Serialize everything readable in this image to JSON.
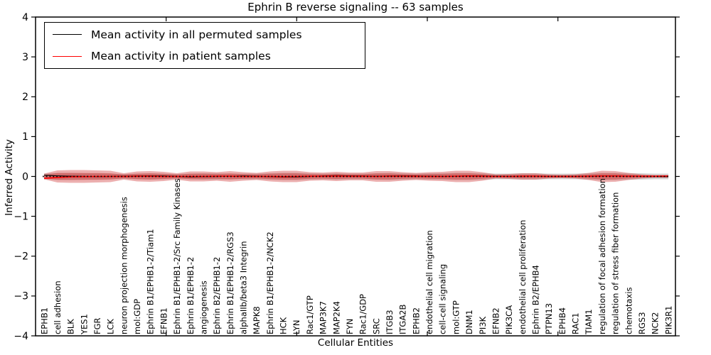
{
  "title": "Ephrin B reverse signaling -- 63 samples",
  "legend": {
    "items": [
      {
        "label": "Mean activity in all permuted samples",
        "color": "#000000"
      },
      {
        "label": "Mean activity in patient samples",
        "color": "#ff0000"
      }
    ]
  },
  "axes": {
    "xlabel": "Cellular Entities",
    "ylabel": "Inferred Activity",
    "ytick_labels": [
      "4",
      "3",
      "2",
      "1",
      "0",
      "−1",
      "−2",
      "−3",
      "−4"
    ]
  },
  "colors": {
    "patient_band": "rgba(205,45,45,0.38)",
    "permuted_band": "rgba(120,120,120,0.30)",
    "patient_line": "#ff0000",
    "permuted_line": "#000000",
    "zero_line": "#000000"
  },
  "chart_data": {
    "type": "area",
    "title": "Ephrin B reverse signaling -- 63 samples",
    "xlabel": "Cellular Entities",
    "ylabel": "Inferred Activity",
    "ylim": [
      -4,
      4
    ],
    "yticks": [
      4,
      3,
      2,
      1,
      0,
      -1,
      -2,
      -3,
      -4
    ],
    "xticks": [
      10,
      20,
      30,
      40
    ],
    "xlim": [
      0,
      49
    ],
    "grid": false,
    "legend_position": "upper left",
    "categories": [
      "EPHB1",
      "cell adhesion",
      "BLK",
      "YES1",
      "FGR",
      "LCK",
      "neuron projection morphogenesis",
      "mol:GDP",
      "Ephrin B1/EPHB1-2/Tiam1",
      "EFNB1",
      "Ephrin B1/EPHB1-2/Src Family Kinases",
      "Ephrin B1/EPHB1-2",
      "angiogenesis",
      "Ephrin B2/EPHB1-2",
      "Ephrin B1/EPHB1-2/RGS3",
      "alphaIIb/beta3 Integrin",
      "MAPK8",
      "Ephrin B1/EPHB1-2/NCK2",
      "HCK",
      "LYN",
      "Rac1/GTP",
      "MAP3K7",
      "MAP2K4",
      "FYN",
      "Rac1/GDP",
      "SRC",
      "ITGB3",
      "ITGA2B",
      "EPHB2",
      "endothelial cell migration",
      "cell-cell signaling",
      "mol:GTP",
      "DNM1",
      "PI3K",
      "EFNB2",
      "PIK3CA",
      "endothelial cell proliferation",
      "Ephrin B2/EPHB4",
      "PTPN13",
      "EPHB4",
      "RAC1",
      "TIAM1",
      "regulation of focal adhesion formation",
      "regulation of stress fiber formation",
      "chemotaxis",
      "RGS3",
      "NCK2",
      "PIK3R1"
    ],
    "series": [
      {
        "name": "Mean activity in all permuted samples",
        "color": "#000000",
        "values": [
          0.03,
          0.015,
          0.005,
          0.0,
          -0.005,
          0.0,
          0.005,
          0.01,
          0.015,
          0.01,
          0.0,
          -0.01,
          -0.005,
          0.0,
          0.005,
          0.01,
          0.005,
          -0.005,
          -0.015,
          -0.01,
          0.0,
          0.01,
          0.02,
          0.015,
          0.01,
          0.005,
          0.01,
          0.015,
          0.01,
          0.005,
          0.0,
          0.005,
          0.015,
          0.01,
          0.005,
          0.0,
          0.0,
          0.005,
          0.0,
          0.0,
          0.0,
          0.005,
          0.01,
          0.01,
          0.005,
          0.0,
          0.0,
          -0.005
        ]
      },
      {
        "name": "Mean activity in patient samples",
        "color": "#ff0000",
        "values": [
          -0.05,
          -0.025,
          -0.01,
          -0.005,
          0.0,
          0.0,
          0.0,
          0.005,
          0.005,
          0.0,
          0.0,
          0.0,
          0.0,
          0.005,
          0.005,
          0.0,
          0.0,
          0.0,
          -0.005,
          0.0,
          0.005,
          0.005,
          0.01,
          0.005,
          0.005,
          0.0,
          0.005,
          0.005,
          0.005,
          0.0,
          0.0,
          0.005,
          0.01,
          0.005,
          0.0,
          0.0,
          0.005,
          0.005,
          0.0,
          0.0,
          0.0,
          0.005,
          0.01,
          0.01,
          0.005,
          0.005,
          0.005,
          0.01
        ]
      }
    ],
    "bands": [
      {
        "name": "permuted samples std band",
        "color": "rgba(120,120,120,0.30)",
        "half_widths": [
          0.071,
          0.089,
          0.089,
          0.08,
          0.08,
          0.071,
          0.062,
          0.071,
          0.08,
          0.071,
          0.062,
          0.071,
          0.08,
          0.08,
          0.071,
          0.071,
          0.071,
          0.08,
          0.089,
          0.089,
          0.08,
          0.071,
          0.08,
          0.071,
          0.071,
          0.08,
          0.089,
          0.08,
          0.071,
          0.08,
          0.08,
          0.089,
          0.089,
          0.08,
          0.071,
          0.071,
          0.08,
          0.08,
          0.071,
          0.071,
          0.071,
          0.08,
          0.089,
          0.089,
          0.08,
          0.08,
          0.071,
          0.071
        ]
      },
      {
        "name": "patient samples outer band",
        "color": "rgba(205,45,45,0.38)",
        "half_widths": [
          0.071,
          0.152,
          0.16,
          0.16,
          0.152,
          0.143,
          0.08,
          0.125,
          0.134,
          0.116,
          0.08,
          0.125,
          0.125,
          0.107,
          0.134,
          0.107,
          0.089,
          0.125,
          0.143,
          0.143,
          0.107,
          0.098,
          0.116,
          0.098,
          0.098,
          0.134,
          0.134,
          0.107,
          0.089,
          0.107,
          0.116,
          0.143,
          0.143,
          0.107,
          0.053,
          0.062,
          0.08,
          0.08,
          0.053,
          0.045,
          0.053,
          0.089,
          0.143,
          0.134,
          0.089,
          0.053,
          0.036,
          0.036
        ]
      },
      {
        "name": "patient samples inner band",
        "color": "rgba(205,45,45,0.38)",
        "half_widths": [
          0.039,
          0.084,
          0.088,
          0.088,
          0.084,
          0.079,
          0.044,
          0.069,
          0.074,
          0.064,
          0.044,
          0.069,
          0.069,
          0.059,
          0.074,
          0.059,
          0.049,
          0.069,
          0.079,
          0.079,
          0.059,
          0.054,
          0.064,
          0.054,
          0.054,
          0.074,
          0.074,
          0.059,
          0.049,
          0.059,
          0.064,
          0.079,
          0.079,
          0.059,
          0.029,
          0.034,
          0.044,
          0.044,
          0.029,
          0.025,
          0.029,
          0.049,
          0.079,
          0.074,
          0.049,
          0.029,
          0.02,
          0.02
        ]
      }
    ],
    "zero_line": 0
  }
}
